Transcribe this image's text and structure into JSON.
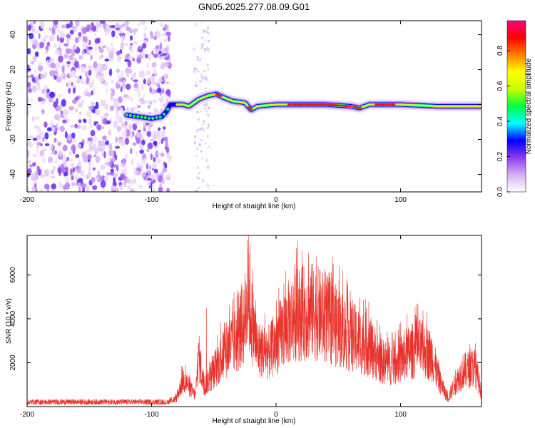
{
  "figure": {
    "title": "GN05.2025.277.08.09.G01"
  },
  "chart_data": [
    {
      "type": "heatmap",
      "xlabel": "Height of straight line (km)",
      "ylabel": "Frequency (Hz)",
      "xlim": [
        -200,
        165
      ],
      "ylim": [
        -50,
        48
      ],
      "xticks": [
        -200,
        -100,
        0,
        100
      ],
      "yticks": [
        -40,
        -20,
        0,
        20,
        40
      ],
      "colorbar": {
        "label": "Normalized spectral amplitude",
        "range": [
          0,
          0.97
        ],
        "ticks": [
          0.0,
          0.2,
          0.4,
          0.6,
          0.8
        ],
        "tick_labels": [
          "0.0",
          "0.2",
          "0.4",
          "0.6",
          "0.8"
        ],
        "colors": [
          "#ffffff",
          "#d6b0f5",
          "#8c3cf0",
          "#0000ff",
          "#00ffff",
          "#00ff40",
          "#c8ff00",
          "#ffff00",
          "#ff8000",
          "#ff0000",
          "#ff0080"
        ]
      },
      "noise_region_km": [
        -200,
        -85
      ],
      "ridge": [
        {
          "x": -120,
          "f": -6
        },
        {
          "x": -110,
          "f": -7
        },
        {
          "x": -100,
          "f": -8
        },
        {
          "x": -92,
          "f": -7
        },
        {
          "x": -88,
          "f": -4
        },
        {
          "x": -85,
          "f": 0
        },
        {
          "x": -75,
          "f": 0
        },
        {
          "x": -70,
          "f": -1
        },
        {
          "x": -62,
          "f": 3
        },
        {
          "x": -55,
          "f": 5
        },
        {
          "x": -48,
          "f": 6
        },
        {
          "x": -42,
          "f": 4
        },
        {
          "x": -35,
          "f": 2
        },
        {
          "x": -25,
          "f": 1
        },
        {
          "x": -20,
          "f": -3
        },
        {
          "x": -15,
          "f": -1
        },
        {
          "x": 0,
          "f": 0
        },
        {
          "x": 40,
          "f": 0
        },
        {
          "x": 60,
          "f": -1
        },
        {
          "x": 67,
          "f": -2
        },
        {
          "x": 75,
          "f": 0
        },
        {
          "x": 100,
          "f": 0
        },
        {
          "x": 130,
          "f": -1
        },
        {
          "x": 165,
          "f": -1
        }
      ]
    },
    {
      "type": "line",
      "xlabel": "Height of straight line (km)",
      "ylabel": "SNR (10 * v/v)",
      "xlim": [
        -200,
        165
      ],
      "ylim": [
        0,
        7800
      ],
      "xticks": [
        -200,
        -100,
        0,
        100
      ],
      "yticks": [
        2000,
        4000,
        6000
      ],
      "color": "#e8322b",
      "envelope": [
        {
          "x": -200,
          "y": 200
        },
        {
          "x": -90,
          "y": 200
        },
        {
          "x": -80,
          "y": 500
        },
        {
          "x": -75,
          "y": 1700
        },
        {
          "x": -72,
          "y": 1500
        },
        {
          "x": -65,
          "y": 700
        },
        {
          "x": -62,
          "y": 3200
        },
        {
          "x": -58,
          "y": 1200
        },
        {
          "x": -50,
          "y": 2200
        },
        {
          "x": -40,
          "y": 3600
        },
        {
          "x": -30,
          "y": 4300
        },
        {
          "x": -22,
          "y": 6500
        },
        {
          "x": -15,
          "y": 3600
        },
        {
          "x": -5,
          "y": 3400
        },
        {
          "x": 5,
          "y": 4700
        },
        {
          "x": 15,
          "y": 5800
        },
        {
          "x": 30,
          "y": 6000
        },
        {
          "x": 45,
          "y": 5300
        },
        {
          "x": 60,
          "y": 4400
        },
        {
          "x": 75,
          "y": 3800
        },
        {
          "x": 85,
          "y": 2800
        },
        {
          "x": 95,
          "y": 2700
        },
        {
          "x": 105,
          "y": 3300
        },
        {
          "x": 115,
          "y": 3700
        },
        {
          "x": 125,
          "y": 3200
        },
        {
          "x": 132,
          "y": 1500
        },
        {
          "x": 138,
          "y": 500
        },
        {
          "x": 142,
          "y": 1200
        },
        {
          "x": 150,
          "y": 2200
        },
        {
          "x": 160,
          "y": 2500
        },
        {
          "x": 165,
          "y": 800
        }
      ],
      "spikes": [
        {
          "x": -22,
          "y": 7800
        },
        {
          "x": -21,
          "y": 7400
        },
        {
          "x": -28,
          "y": 5600
        },
        {
          "x": -35,
          "y": 4900
        },
        {
          "x": -56,
          "y": 4500
        },
        {
          "x": 26,
          "y": 7000
        },
        {
          "x": 15,
          "y": 6500
        }
      ]
    }
  ]
}
